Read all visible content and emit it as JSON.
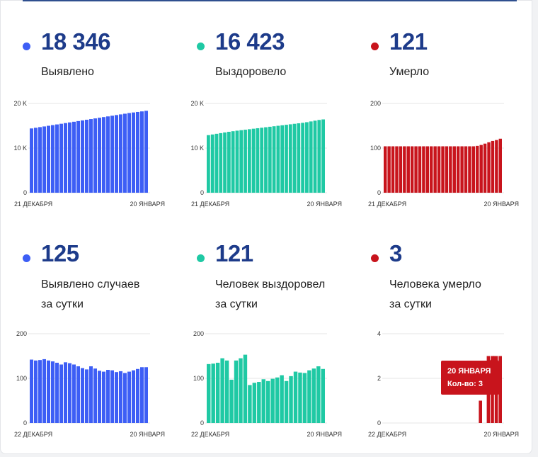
{
  "colors": {
    "blue": "#3d5ef5",
    "green": "#1fc9a4",
    "red": "#c8141c",
    "number": "#1d3b8a"
  },
  "stats": [
    {
      "number": "18 346",
      "label_line1": "Выявлено",
      "label_line2": ""
    },
    {
      "number": "16 423",
      "label_line1": "Выздоровело",
      "label_line2": ""
    },
    {
      "number": "121",
      "label_line1": "Умерло",
      "label_line2": ""
    },
    {
      "number": "125",
      "label_line1": "Выявлено случаев",
      "label_line2": "за сутки"
    },
    {
      "number": "121",
      "label_line1": "Человек выздоровел",
      "label_line2": "за сутки"
    },
    {
      "number": "3",
      "label_line1": "Человека умерло",
      "label_line2": "за сутки"
    }
  ],
  "tooltip": {
    "date": "20 ЯНВАРЯ",
    "value_text": "Кол-во: 3"
  },
  "chart_data": [
    {
      "type": "bar",
      "color": "#3d5ef5",
      "x_start_label": "21 ДЕКАБРЯ",
      "x_end_label": "20 ЯНВАРЯ",
      "yticks": [
        "0",
        "10 K",
        "20 K"
      ],
      "ylim": [
        0,
        20000
      ],
      "values": [
        14400,
        14550,
        14700,
        14850,
        15000,
        15150,
        15300,
        15450,
        15600,
        15750,
        15900,
        16050,
        16200,
        16350,
        16500,
        16650,
        16800,
        16950,
        17100,
        17250,
        17400,
        17550,
        17700,
        17850,
        17980,
        18100,
        18221,
        18346
      ]
    },
    {
      "type": "bar",
      "color": "#1fc9a4",
      "x_start_label": "21 ДЕКАБРЯ",
      "x_end_label": "20 ЯНВАРЯ",
      "yticks": [
        "0",
        "10 K",
        "20 K"
      ],
      "ylim": [
        0,
        20000
      ],
      "values": [
        12900,
        13050,
        13200,
        13350,
        13500,
        13650,
        13780,
        13900,
        14010,
        14120,
        14230,
        14340,
        14450,
        14560,
        14670,
        14780,
        14890,
        15000,
        15110,
        15220,
        15330,
        15440,
        15550,
        15660,
        15800,
        15970,
        16140,
        16302,
        16423
      ]
    },
    {
      "type": "bar",
      "color": "#c8141c",
      "x_start_label": "21 ДЕКАБРЯ",
      "x_end_label": "20 ЯНВАРЯ",
      "yticks": [
        "0",
        "100",
        "200"
      ],
      "ylim": [
        0,
        200
      ],
      "values": [
        104,
        104,
        104,
        104,
        104,
        104,
        104,
        104,
        104,
        104,
        104,
        104,
        104,
        104,
        104,
        104,
        104,
        104,
        104,
        104,
        104,
        104,
        104,
        104,
        105,
        107,
        110,
        113,
        116,
        118,
        121
      ]
    },
    {
      "type": "bar",
      "color": "#3d5ef5",
      "x_start_label": "22 ДЕКАБРЯ",
      "x_end_label": "20 ЯНВАРЯ",
      "yticks": [
        "0",
        "100",
        "200"
      ],
      "ylim": [
        0,
        200
      ],
      "values": [
        142,
        140,
        141,
        143,
        140,
        138,
        135,
        131,
        136,
        134,
        131,
        127,
        123,
        120,
        127,
        122,
        117,
        115,
        119,
        118,
        114,
        116,
        112,
        115,
        118,
        121,
        125,
        125
      ]
    },
    {
      "type": "bar",
      "color": "#1fc9a4",
      "x_start_label": "22 ДЕКАБРЯ",
      "x_end_label": "20 ЯНВАРЯ",
      "yticks": [
        "0",
        "100",
        "200"
      ],
      "ylim": [
        0,
        200
      ],
      "values": [
        132,
        133,
        135,
        145,
        140,
        97,
        140,
        145,
        153,
        85,
        90,
        92,
        98,
        94,
        99,
        102,
        107,
        94,
        105,
        115,
        113,
        112,
        118,
        122,
        127,
        121
      ]
    },
    {
      "type": "bar",
      "color": "#c8141c",
      "x_start_label": "22 ДЕКАБРЯ",
      "x_end_label": "20 ЯНВАРЯ",
      "yticks": [
        "0",
        "2",
        "4"
      ],
      "ylim": [
        0,
        4
      ],
      "values": [
        0,
        0,
        0,
        0,
        0,
        0,
        0,
        0,
        0,
        0,
        0,
        0,
        0,
        0,
        0,
        0,
        0,
        0,
        0,
        0,
        0,
        0,
        0,
        0,
        1,
        0,
        3,
        3,
        3,
        3
      ]
    }
  ]
}
